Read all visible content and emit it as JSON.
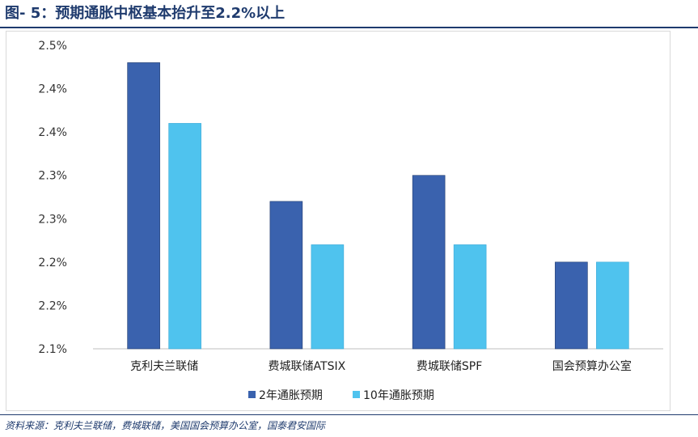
{
  "header": {
    "title": "图- 5：预期通胀中枢基本抬升至2.2%以上"
  },
  "footer": {
    "source": "资料来源：克利夫兰联储，费城联储，美国国会预算办公室，国泰君安国际"
  },
  "colors": {
    "series_2y": "#3a62ae",
    "series_10y": "#4fc3ee",
    "title": "#1f3b6e"
  },
  "chart_data": {
    "type": "bar",
    "categories": [
      "克利夫兰联储",
      "费城联储ATSIX",
      "费城联储SPF",
      "国会预算办公室"
    ],
    "series": [
      {
        "name": "2年通胀预期",
        "values": [
          2.43,
          2.27,
          2.3,
          2.2
        ]
      },
      {
        "name": "10年通胀预期",
        "values": [
          2.36,
          2.22,
          2.22,
          2.2
        ]
      }
    ],
    "yticks": [
      "2.1%",
      "2.2%",
      "2.2%",
      "2.3%",
      "2.3%",
      "2.4%",
      "2.4%",
      "2.5%"
    ],
    "ylim": [
      2.1,
      2.45
    ],
    "grid": false,
    "legend": "bottom-center"
  }
}
